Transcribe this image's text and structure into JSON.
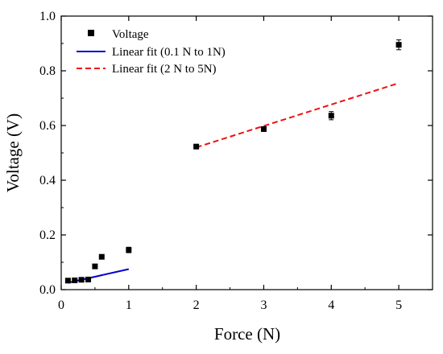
{
  "chart_data": {
    "type": "scatter",
    "xlabel": "Force (N)",
    "ylabel": "Voltage (V)",
    "xlim": [
      0,
      5.5
    ],
    "ylim": [
      0,
      1.0
    ],
    "xticks": [
      "0",
      "1",
      "2",
      "3",
      "4",
      "5"
    ],
    "yticks": [
      "0.0",
      "0.2",
      "0.4",
      "0.6",
      "0.8",
      "1.0"
    ],
    "grid": false,
    "legend_position": "top-left",
    "series": [
      {
        "name": "Voltage",
        "kind": "points",
        "marker": "square",
        "color": "#000000",
        "points": [
          {
            "x": 0.1,
            "y": 0.033,
            "err": 0.003
          },
          {
            "x": 0.2,
            "y": 0.034,
            "err": 0.003
          },
          {
            "x": 0.3,
            "y": 0.036,
            "err": 0.003
          },
          {
            "x": 0.4,
            "y": 0.037,
            "err": 0.003
          },
          {
            "x": 0.5,
            "y": 0.085,
            "err": 0.004
          },
          {
            "x": 0.6,
            "y": 0.12,
            "err": 0.005
          },
          {
            "x": 1.0,
            "y": 0.145,
            "err": 0.01
          },
          {
            "x": 2.0,
            "y": 0.523,
            "err": 0.005
          },
          {
            "x": 3.0,
            "y": 0.587,
            "err": 0.008
          },
          {
            "x": 4.0,
            "y": 0.636,
            "err": 0.015
          },
          {
            "x": 5.0,
            "y": 0.895,
            "err": 0.018
          }
        ]
      },
      {
        "name": "Linear fit (0.1 N to 1N)",
        "kind": "line",
        "style": "solid",
        "color": "#0000cc",
        "x": [
          0.1,
          1.0
        ],
        "y": [
          0.025,
          0.075
        ]
      },
      {
        "name": "Linear fit (2 N to 5N)",
        "kind": "line",
        "style": "dashed",
        "color": "#ee1111",
        "x": [
          2.0,
          5.0
        ],
        "y": [
          0.52,
          0.755
        ]
      }
    ]
  }
}
